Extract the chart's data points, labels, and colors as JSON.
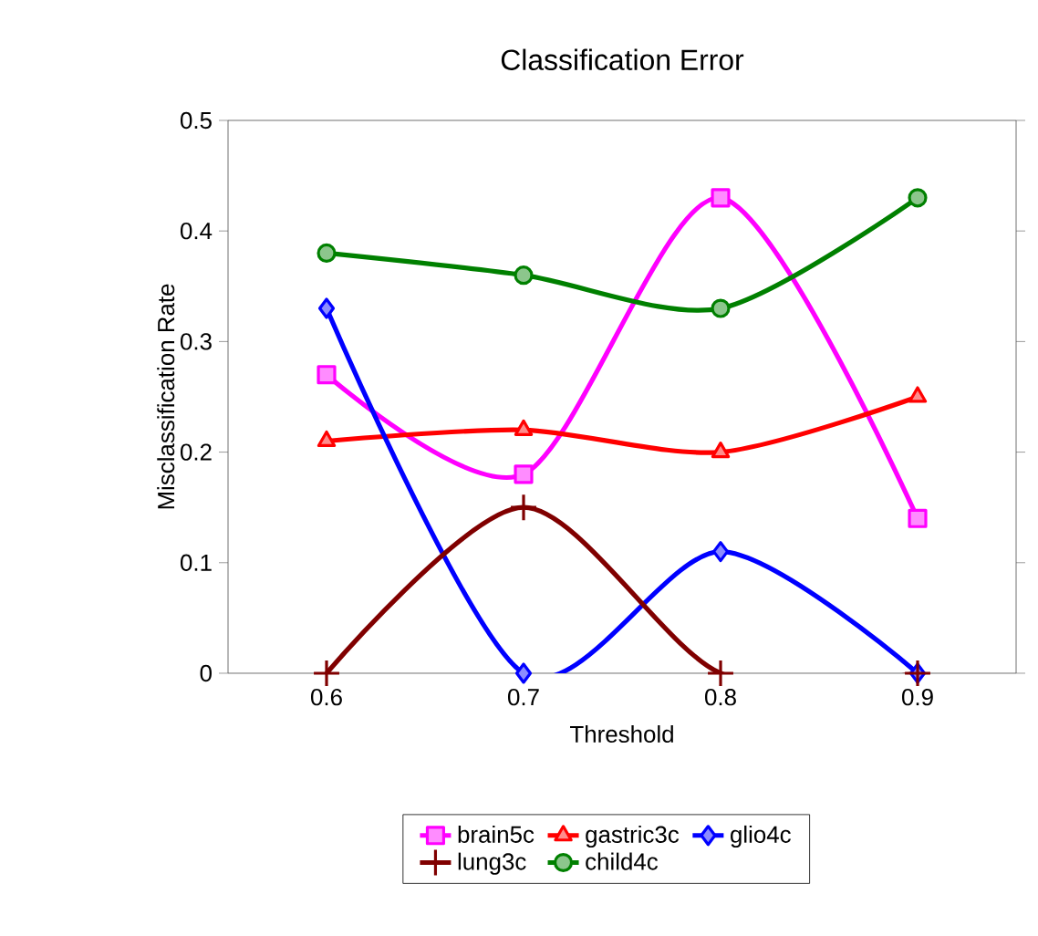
{
  "chart_data": {
    "type": "line",
    "title": "Classification Error",
    "xlabel": "Threshold",
    "ylabel": "Misclassification Rate",
    "categories": [
      "0.6",
      "0.7",
      "0.8",
      "0.9"
    ],
    "series": [
      {
        "name": "brain5c",
        "color": "#ff00ff",
        "marker": "square",
        "values": [
          0.27,
          0.18,
          0.43,
          0.14
        ]
      },
      {
        "name": "gastric3c",
        "color": "#ff0000",
        "marker": "triangle",
        "values": [
          0.21,
          0.22,
          0.2,
          0.25
        ]
      },
      {
        "name": "glio4c",
        "color": "#0000ff",
        "marker": "diamond",
        "values": [
          0.33,
          0,
          0.11,
          0
        ]
      },
      {
        "name": "lung3c",
        "color": "#800000",
        "marker": "cross",
        "values": [
          0,
          0.15,
          0,
          0
        ]
      },
      {
        "name": "child4c",
        "color": "#008000",
        "marker": "circle",
        "values": [
          0.38,
          0.36,
          0.33,
          0.43
        ]
      }
    ],
    "ylim": [
      0,
      0.5
    ],
    "yticks": [
      0,
      0.1,
      0.2,
      0.3,
      0.4,
      0.5
    ],
    "grid": false,
    "legend": "bottom"
  }
}
